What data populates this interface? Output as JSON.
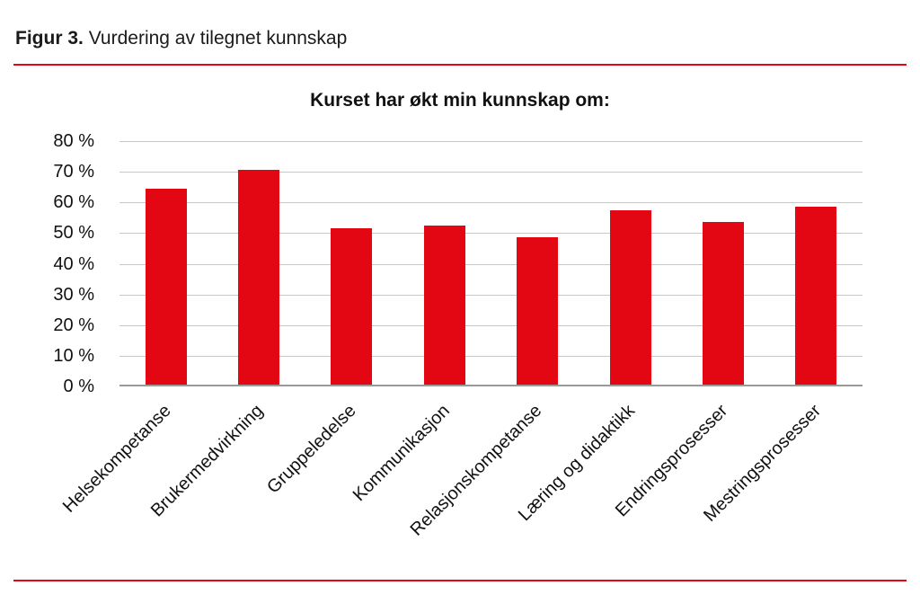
{
  "figure": {
    "label": "Figur 3.",
    "title": "Vurdering av tilegnet kunnskap"
  },
  "colors": {
    "accent_red": "#e30613",
    "bar_red": "#e30613",
    "gridline_gray": "#c8c8c8",
    "axis_gray": "#9a9a9a"
  },
  "chart_data": {
    "type": "bar",
    "title": "Kurset har økt min kunnskap om:",
    "categories": [
      "Helsekompetanse",
      "Brukermedvirkning",
      "Gruppeledelse",
      "Kommunikasjon",
      "Relasjonskompetanse",
      "Læring og didaktikk",
      "Endringsprosesser",
      "Mestringsprosesser"
    ],
    "values": [
      64,
      70,
      51,
      52,
      48,
      57,
      53,
      58
    ],
    "value_unit": "%",
    "xlabel": "",
    "ylabel": "",
    "ylim": [
      0,
      80
    ],
    "ytick_step": 10,
    "ytick_suffix": " %",
    "grid": true,
    "legend": false,
    "bar_color": "#e30613"
  }
}
